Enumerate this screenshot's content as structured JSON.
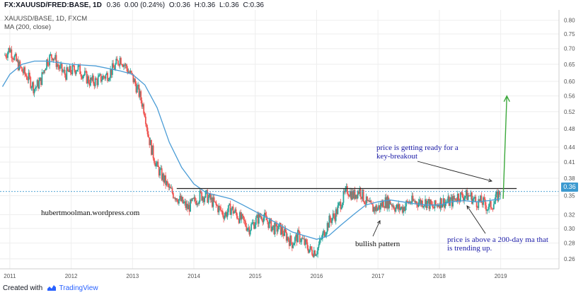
{
  "header": {
    "symbol": "FX:XAUUSD/FRED:BASE, 1D",
    "ohlc": {
      "last": "0.36",
      "change": "0.00 (0.24%)",
      "open": "O:0.36",
      "high": "H:0.36",
      "low": "L:0.36",
      "close": "C:0.36"
    },
    "legend_series": "XAUUSD/BASE, 1D, FXCM",
    "legend_ma": "MA (200, close)"
  },
  "annotations": {
    "watermark": "hubertmoolman.wordpress.com",
    "bullish": "bullish pattern",
    "breakout_line1": "price is getting ready for a",
    "breakout_line2": "key-breakout",
    "ma_line1": "price is above a 200-day ma that",
    "ma_line2": "is trending up."
  },
  "price_tag": "0.36",
  "footer": {
    "created_with": "Created with",
    "brand": "TradingView"
  },
  "colors": {
    "up": "#26a69a",
    "down": "#ef5350",
    "ma": "#4a9cd6",
    "grid": "#eeeeee",
    "arrow_green": "#3ca83c",
    "text_blue": "#1a1aa6",
    "price_tag": "#3c9ad0"
  },
  "chart_data": {
    "type": "line",
    "title": "",
    "scale": "log",
    "ylim": [
      0.248,
      0.84
    ],
    "y_ticks": [
      "0.80",
      "0.75",
      "0.70",
      "0.65",
      "0.60",
      "0.56",
      "0.52",
      "0.48",
      "0.44",
      "0.41",
      "0.38",
      "0.35",
      "0.32",
      "0.30",
      "0.28",
      "0.26"
    ],
    "x_ticks": [
      "2011",
      "2012",
      "2013",
      "2014",
      "2015",
      "2016",
      "2017",
      "2018",
      "2019"
    ],
    "xlim": [
      2010.84,
      2019.95
    ],
    "series": [
      {
        "style": "candlestick",
        "x": [
          2010.92,
          2011.0,
          2011.1,
          2011.2,
          2011.3,
          2011.4,
          2011.5,
          2011.6,
          2011.7,
          2011.8,
          2011.9,
          2012.0,
          2012.1,
          2012.2,
          2012.3,
          2012.4,
          2012.5,
          2012.6,
          2012.7,
          2012.8,
          2012.9,
          2013.0,
          2013.1,
          2013.2,
          2013.25,
          2013.3,
          2013.4,
          2013.5,
          2013.6,
          2013.7,
          2013.8,
          2013.9,
          2014.0,
          2014.1,
          2014.2,
          2014.3,
          2014.4,
          2014.5,
          2014.6,
          2014.7,
          2014.8,
          2014.9,
          2015.0,
          2015.1,
          2015.2,
          2015.3,
          2015.4,
          2015.5,
          2015.6,
          2015.7,
          2015.8,
          2015.9,
          2016.0,
          2016.1,
          2016.2,
          2016.3,
          2016.4,
          2016.5,
          2016.6,
          2016.7,
          2016.8,
          2016.9,
          2017.0,
          2017.1,
          2017.2,
          2017.3,
          2017.4,
          2017.5,
          2017.6,
          2017.7,
          2017.8,
          2017.9,
          2018.0,
          2018.1,
          2018.2,
          2018.3,
          2018.4,
          2018.5,
          2018.6,
          2018.7,
          2018.8,
          2018.9,
          2019.0
        ],
        "values": [
          0.68,
          0.7,
          0.66,
          0.63,
          0.61,
          0.58,
          0.6,
          0.66,
          0.68,
          0.64,
          0.62,
          0.63,
          0.64,
          0.62,
          0.6,
          0.6,
          0.61,
          0.62,
          0.64,
          0.67,
          0.64,
          0.61,
          0.57,
          0.52,
          0.47,
          0.44,
          0.4,
          0.38,
          0.36,
          0.35,
          0.34,
          0.33,
          0.34,
          0.35,
          0.35,
          0.34,
          0.33,
          0.32,
          0.33,
          0.32,
          0.31,
          0.3,
          0.31,
          0.32,
          0.31,
          0.3,
          0.3,
          0.29,
          0.28,
          0.29,
          0.28,
          0.27,
          0.27,
          0.29,
          0.31,
          0.32,
          0.34,
          0.36,
          0.35,
          0.36,
          0.34,
          0.33,
          0.33,
          0.34,
          0.34,
          0.33,
          0.33,
          0.34,
          0.34,
          0.34,
          0.34,
          0.33,
          0.34,
          0.34,
          0.34,
          0.35,
          0.35,
          0.35,
          0.34,
          0.34,
          0.33,
          0.34,
          0.36
        ]
      },
      {
        "name": "MA (200, close)",
        "style": "line",
        "x": [
          2010.88,
          2011.0,
          2011.2,
          2011.4,
          2011.6,
          2011.8,
          2012.0,
          2012.4,
          2012.8,
          2013.0,
          2013.2,
          2013.4,
          2013.6,
          2013.8,
          2014.0,
          2014.2,
          2014.4,
          2014.6,
          2014.8,
          2015.0,
          2015.2,
          2015.4,
          2015.6,
          2015.8,
          2016.0,
          2016.2,
          2016.4,
          2016.6,
          2016.8,
          2017.0,
          2017.2,
          2017.4,
          2017.6,
          2017.8,
          2018.0,
          2018.2,
          2018.4,
          2018.6,
          2018.8,
          2019.0
        ],
        "values": [
          0.585,
          0.62,
          0.65,
          0.66,
          0.66,
          0.655,
          0.65,
          0.645,
          0.63,
          0.62,
          0.59,
          0.53,
          0.45,
          0.4,
          0.37,
          0.355,
          0.35,
          0.345,
          0.335,
          0.325,
          0.315,
          0.305,
          0.295,
          0.29,
          0.285,
          0.29,
          0.305,
          0.32,
          0.335,
          0.34,
          0.343,
          0.34,
          0.337,
          0.335,
          0.335,
          0.34,
          0.342,
          0.34,
          0.342,
          0.345
        ]
      },
      {
        "style": "horizontal-line",
        "values": [
          0.362
        ]
      },
      {
        "style": "arrow",
        "x": [
          2019.04,
          2019.1
        ],
        "values": [
          0.345,
          0.56
        ]
      }
    ]
  }
}
